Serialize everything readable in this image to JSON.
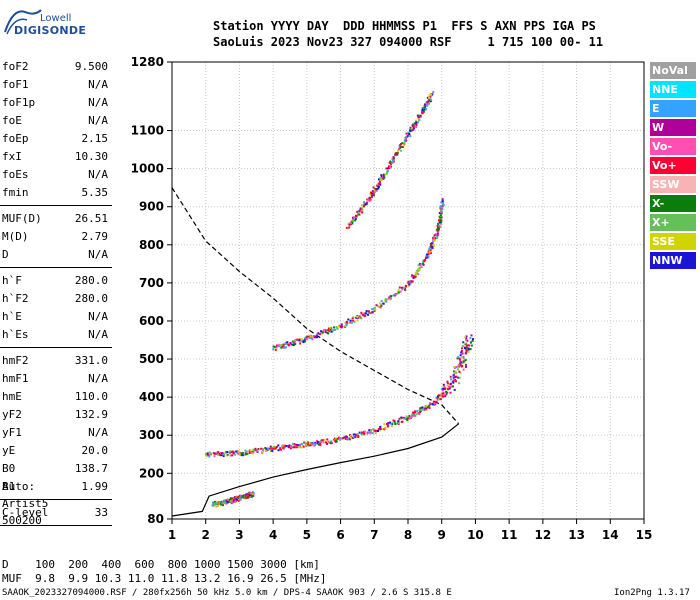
{
  "logo": {
    "top": "Lowell",
    "bottom": "DIGISONDE"
  },
  "header": {
    "line1": "Station YYYY DAY  DDD HHMMSS P1  FFS S AXN PPS IGA PS",
    "line2": "SaoLuis 2023 Nov23 327 094000 RSF     1 715 100 00- 11"
  },
  "params_groups": [
    [
      {
        "name": "foF2",
        "value": "9.500"
      },
      {
        "name": "foF1",
        "value": "N/A"
      },
      {
        "name": "foF1p",
        "value": "N/A"
      },
      {
        "name": "foE",
        "value": "N/A"
      },
      {
        "name": "foEp",
        "value": "2.15"
      },
      {
        "name": "fxI",
        "value": "10.30"
      },
      {
        "name": "foEs",
        "value": "N/A"
      },
      {
        "name": "fmin",
        "value": "5.35"
      }
    ],
    [
      {
        "name": "MUF(D)",
        "value": "26.51"
      },
      {
        "name": "M(D)",
        "value": "2.79"
      },
      {
        "name": "D",
        "value": "N/A"
      }
    ],
    [
      {
        "name": "h`F",
        "value": "280.0"
      },
      {
        "name": "h`F2",
        "value": "280.0"
      },
      {
        "name": "h`E",
        "value": "N/A"
      },
      {
        "name": "h`Es",
        "value": "N/A"
      }
    ],
    [
      {
        "name": "hmF2",
        "value": "331.0"
      },
      {
        "name": "hmF1",
        "value": "N/A"
      },
      {
        "name": "hmE",
        "value": "110.0"
      },
      {
        "name": "yF2",
        "value": "132.9"
      },
      {
        "name": "yF1",
        "value": "N/A"
      },
      {
        "name": "yE",
        "value": "20.0"
      },
      {
        "name": "B0",
        "value": "138.7"
      },
      {
        "name": "B1",
        "value": "1.99"
      }
    ],
    [
      {
        "name": "C-level",
        "value": "33"
      }
    ]
  ],
  "auto": {
    "label": "Auto:",
    "artist": "Artist5",
    "code": "500200"
  },
  "legend": [
    {
      "label": "NoVal",
      "bg": "#a0a0a0",
      "fg": "#ffffff"
    },
    {
      "label": "NNE",
      "bg": "#00e5ff",
      "fg": "#ffffff"
    },
    {
      "label": "E",
      "bg": "#33a3ff",
      "fg": "#ffffff"
    },
    {
      "label": "W",
      "bg": "#b0009a",
      "fg": "#ffffff"
    },
    {
      "label": "Vo-",
      "bg": "#ff4fb3",
      "fg": "#ffffff"
    },
    {
      "label": "Vo+",
      "bg": "#ff0033",
      "fg": "#ffffff"
    },
    {
      "label": "SSW",
      "bg": "#f8b4b4",
      "fg": "#ffffff"
    },
    {
      "label": "X-",
      "bg": "#0a7d0a",
      "fg": "#ffffff"
    },
    {
      "label": "X+",
      "bg": "#66c05a",
      "fg": "#ffffff"
    },
    {
      "label": "SSE",
      "bg": "#d2d400",
      "fg": "#ffffff"
    },
    {
      "label": "NNW",
      "bg": "#1a14d6",
      "fg": "#ffffff"
    }
  ],
  "chart_data": {
    "type": "scatter",
    "x_ticks": [
      1,
      2,
      3,
      4,
      5,
      6,
      7,
      8,
      9,
      10,
      11,
      12,
      13,
      14,
      15
    ],
    "y_ticks": [
      80,
      200,
      300,
      400,
      500,
      600,
      700,
      800,
      900,
      1000,
      1100,
      1280
    ],
    "xlim": [
      1,
      15
    ],
    "ylim": [
      80,
      1280
    ],
    "grid": true,
    "height_profile_dashed": [
      [
        1,
        950
      ],
      [
        2,
        810
      ],
      [
        3,
        730
      ],
      [
        4,
        660
      ],
      [
        5,
        580
      ],
      [
        6,
        520
      ],
      [
        7,
        470
      ],
      [
        8,
        420
      ],
      [
        9,
        380
      ],
      [
        9.5,
        330
      ]
    ],
    "height_profile_solid": [
      [
        1,
        88
      ],
      [
        1.9,
        100
      ],
      [
        2.1,
        140
      ],
      [
        3,
        165
      ],
      [
        4,
        190
      ],
      [
        5,
        210
      ],
      [
        6,
        228
      ],
      [
        7,
        245
      ],
      [
        8,
        265
      ],
      [
        9,
        295
      ],
      [
        9.5,
        330
      ]
    ],
    "traces": [
      {
        "name": "F2 O-trace",
        "points": [
          [
            2,
            252
          ],
          [
            3,
            255
          ],
          [
            4,
            268
          ],
          [
            5,
            278
          ],
          [
            6,
            292
          ],
          [
            7,
            315
          ],
          [
            8,
            350
          ],
          [
            8.8,
            390
          ],
          [
            9.3,
            440
          ],
          [
            9.6,
            500
          ],
          [
            9.8,
            560
          ]
        ]
      },
      {
        "name": "F2 2-hop",
        "points": [
          [
            4,
            530
          ],
          [
            5,
            555
          ],
          [
            6,
            590
          ],
          [
            7,
            635
          ],
          [
            8,
            700
          ],
          [
            8.6,
            780
          ],
          [
            8.9,
            850
          ],
          [
            9,
            920
          ]
        ]
      },
      {
        "name": "F2 3-hop",
        "points": [
          [
            6.2,
            850
          ],
          [
            6.8,
            920
          ],
          [
            7.3,
            990
          ],
          [
            7.9,
            1080
          ],
          [
            8.4,
            1150
          ],
          [
            8.7,
            1200
          ]
        ]
      },
      {
        "name": "Es",
        "points": [
          [
            2.2,
            120
          ],
          [
            2.7,
            130
          ],
          [
            3.1,
            140
          ],
          [
            3.4,
            150
          ]
        ]
      }
    ]
  },
  "footer": {
    "d_row": "D    100  200  400  600  800 1000 1500 3000 [km]",
    "muf_row": "MUF  9.8  9.9 10.3 11.0 11.8 13.2 16.9 26.5 [MHz]",
    "bottom_line": "SAAOK_2023327094000.RSF / 280fx256h 50 kHz 5.0 km / DPS-4 SAAOK 903 / 2.6 S 315.8 E",
    "version": "Ion2Png 1.3.17"
  }
}
